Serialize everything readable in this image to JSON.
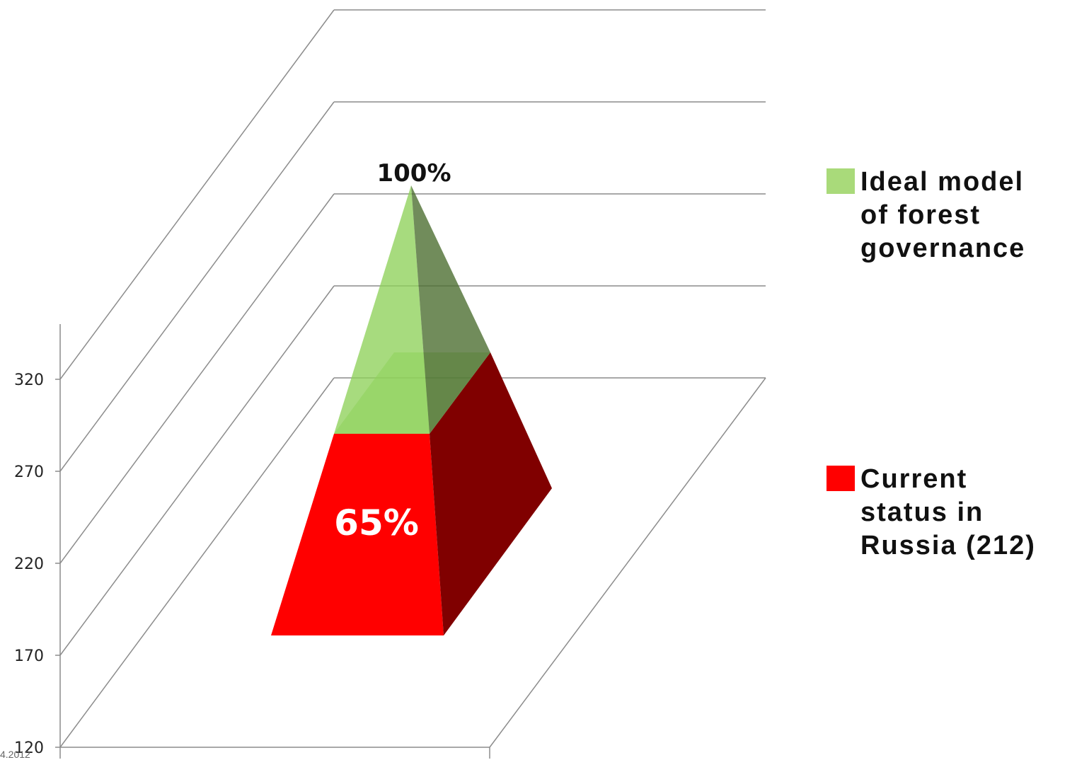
{
  "chart_data": {
    "type": "pyramid-3d",
    "title": "",
    "y_axis": {
      "ticks": [
        "120",
        "170",
        "220",
        "270",
        "320"
      ],
      "min": 120,
      "max": 320,
      "step": 50
    },
    "grid": true,
    "legend_position": "right",
    "series": [
      {
        "name": "Ideal model\nof forest\ngovernance",
        "value_label": "100%",
        "value": 100,
        "color": "#8ed15a"
      },
      {
        "name": "Current\nstatus in\nRussia (212)",
        "value_label": "65%",
        "value": 65,
        "color": "#ff0000"
      }
    ],
    "colors": {
      "ideal_front": "#a9da7a",
      "ideal_side": "#6f8a57",
      "current_front": "#ff0000",
      "current_side": "#800000",
      "grid": "#8c8c8c"
    }
  },
  "footer": {
    "date": "4.2012"
  }
}
